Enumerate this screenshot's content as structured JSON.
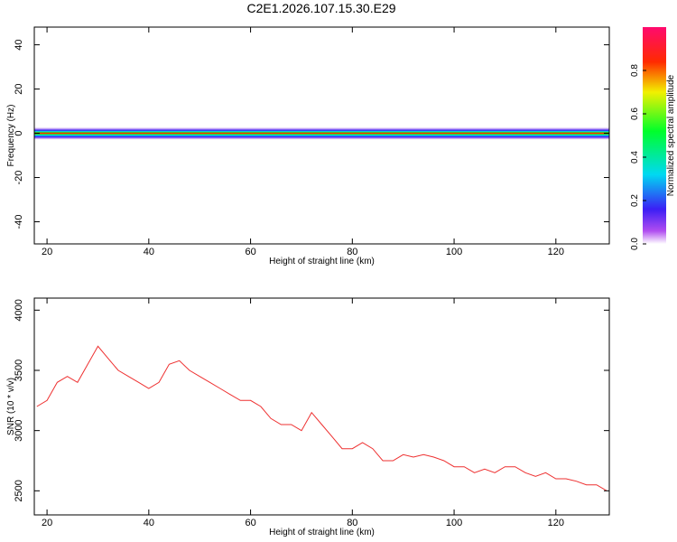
{
  "title": "C2E1.2026.107.15.30.E29",
  "colors": {
    "snr_line": "#ee3030",
    "frame": "#000000"
  },
  "chart_data": [
    {
      "type": "heatmap",
      "xlabel": "Height of straight line (km)",
      "ylabel": "Frequency (Hz)",
      "xlim": [
        17.5,
        130.5
      ],
      "ylim": [
        -50,
        48
      ],
      "x_ticks": [
        20,
        40,
        60,
        80,
        100,
        120
      ],
      "y_ticks": [
        -40,
        -20,
        0,
        20,
        40
      ],
      "band_center_hz": 0,
      "band_halfwidth_hz": 3,
      "colormap": "rainbow (white → purple → blue → cyan → green → yellow → red → magenta)",
      "colorbar": {
        "label": "Normalized spectral amplitude",
        "range": [
          0,
          1
        ],
        "ticks": [
          0.0,
          0.2,
          0.4,
          0.6,
          0.8
        ]
      }
    },
    {
      "type": "line",
      "xlabel": "Height of straight line (km)",
      "ylabel": "SNR (10 * v/v)",
      "xlim": [
        17.5,
        130.5
      ],
      "ylim": [
        2300,
        4100
      ],
      "x_ticks": [
        20,
        40,
        60,
        80,
        100,
        120
      ],
      "y_ticks": [
        2500,
        3000,
        3500,
        4000
      ],
      "series": [
        {
          "x": [
            18,
            20,
            22,
            24,
            26,
            28,
            30,
            32,
            34,
            36,
            38,
            40,
            42,
            44,
            46,
            48,
            50,
            52,
            54,
            56,
            58,
            60,
            62,
            64,
            66,
            68,
            70,
            72,
            74,
            76,
            78,
            80,
            82,
            84,
            86,
            88,
            90,
            92,
            94,
            96,
            98,
            100,
            102,
            104,
            106,
            108,
            110,
            112,
            114,
            116,
            118,
            120,
            122,
            124,
            126,
            128,
            130
          ],
          "values": [
            3200,
            3250,
            3400,
            3450,
            3400,
            3550,
            3700,
            3600,
            3500,
            3450,
            3400,
            3350,
            3400,
            3550,
            3580,
            3500,
            3450,
            3400,
            3350,
            3300,
            3250,
            3250,
            3200,
            3100,
            3050,
            3050,
            3000,
            3150,
            3050,
            2950,
            2850,
            2850,
            2900,
            2850,
            2750,
            2750,
            2800,
            2780,
            2800,
            2780,
            2750,
            2700,
            2700,
            2650,
            2680,
            2650,
            2700,
            2700,
            2650,
            2620,
            2650,
            2600,
            2600,
            2580,
            2550,
            2550,
            2500
          ]
        }
      ]
    }
  ]
}
